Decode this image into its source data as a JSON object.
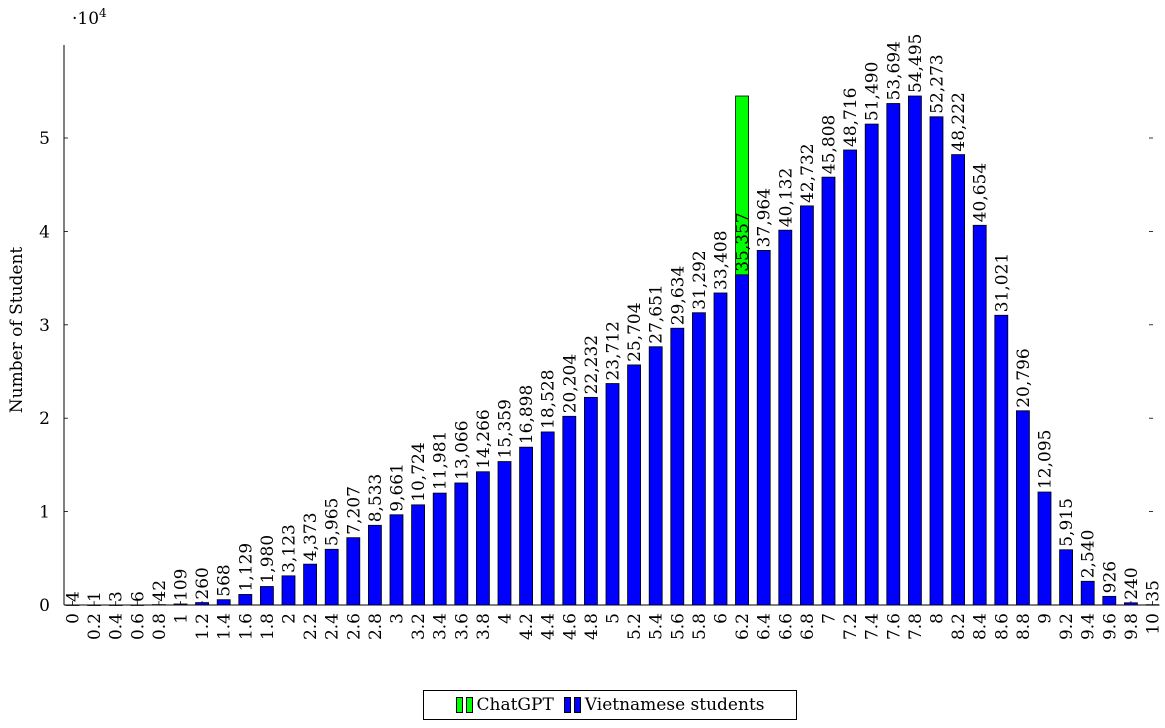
{
  "chart_data": {
    "type": "bar",
    "title": "",
    "xlabel": "",
    "ylabel": "Number of Student",
    "y_scale_label": "·10",
    "y_scale_exponent": "4",
    "ylim": [
      0,
      59500
    ],
    "y_ticks": [
      0,
      10000,
      20000,
      30000,
      40000,
      50000
    ],
    "y_tick_labels": [
      "0",
      "1",
      "2",
      "3",
      "4",
      "5"
    ],
    "categories": [
      "0",
      "0.2",
      "0.4",
      "0.6",
      "0.8",
      "1",
      "1.2",
      "1.4",
      "1.6",
      "1.8",
      "2",
      "2.2",
      "2.4",
      "2.6",
      "2.8",
      "3",
      "3.2",
      "3.4",
      "3.6",
      "3.8",
      "4",
      "4.2",
      "4.4",
      "4.6",
      "4.8",
      "5",
      "5.2",
      "5.4",
      "5.6",
      "5.8",
      "6",
      "6.2",
      "6.4",
      "6.6",
      "6.8",
      "7",
      "7.2",
      "7.4",
      "7.6",
      "7.8",
      "8",
      "8.2",
      "8.4",
      "8.6",
      "8.8",
      "9",
      "9.2",
      "9.4",
      "9.6",
      "9.8",
      "10"
    ],
    "series": [
      {
        "name": "Vietnamese students",
        "color": "#0000ff",
        "values": [
          4,
          1,
          3,
          6,
          42,
          109,
          260,
          568,
          1129,
          1980,
          3123,
          4373,
          5965,
          7207,
          8533,
          9661,
          10724,
          11981,
          13066,
          14266,
          15359,
          16898,
          18528,
          20204,
          22232,
          23712,
          25704,
          27651,
          29634,
          31292,
          33408,
          35357,
          37964,
          40132,
          42732,
          45808,
          48716,
          51490,
          53694,
          54495,
          52273,
          48222,
          40654,
          31021,
          20796,
          12095,
          5915,
          2540,
          926,
          240,
          35
        ],
        "labels": [
          "4",
          "1",
          "3",
          "6",
          "42",
          "109",
          "260",
          "568",
          "1,129",
          "1,980",
          "3,123",
          "4,373",
          "5,965",
          "7,207",
          "8,533",
          "9,661",
          "10,724",
          "11,981",
          "13,066",
          "14,266",
          "15,359",
          "16,898",
          "18,528",
          "20,204",
          "22,232",
          "23,712",
          "25,704",
          "27,651",
          "29,634",
          "31,292",
          "33,408",
          "35,357",
          "37,964",
          "40,132",
          "42,732",
          "45,808",
          "48,716",
          "51,490",
          "53,694",
          "54,495",
          "52,273",
          "48,222",
          "40,654",
          "31,021",
          "20,796",
          "12,095",
          "5,915",
          "2,540",
          "926",
          "240",
          "35"
        ]
      },
      {
        "name": "ChatGPT",
        "color": "#00ff00",
        "category": "6.2",
        "value": 54495
      }
    ],
    "legend": {
      "position": "bottom-center"
    },
    "grid": false
  }
}
